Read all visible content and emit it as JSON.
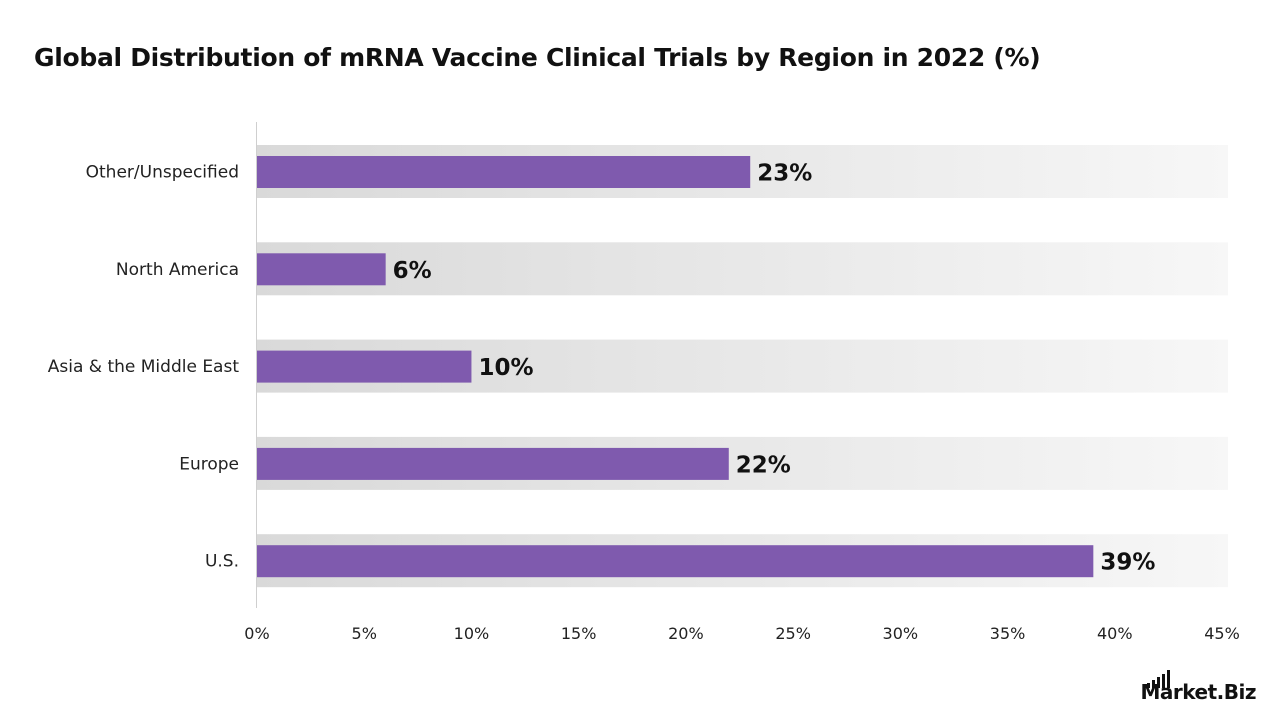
{
  "title": "Global Distribution of mRNA Vaccine Clinical Trials by Region in 2022 (%)",
  "logo": {
    "text": "Market.Biz"
  },
  "colors": {
    "bar": "#7f5aae",
    "band": "#e6e6e6",
    "axis": "#cfcfcf"
  },
  "chart_data": {
    "type": "bar",
    "orientation": "horizontal",
    "categories": [
      "Other/Unspecified",
      "North America",
      "Asia & the Middle East",
      "Europe",
      "U.S."
    ],
    "values": [
      23,
      6,
      10,
      22,
      39
    ],
    "value_labels": [
      "23%",
      "6%",
      "10%",
      "22%",
      "39%"
    ],
    "title": "Global Distribution of mRNA Vaccine Clinical Trials by Region in 2022 (%)",
    "xlabel": "",
    "ylabel": "",
    "xlim": [
      0,
      45
    ],
    "xticks": [
      0,
      5,
      10,
      15,
      20,
      25,
      30,
      35,
      40,
      45
    ],
    "xtick_labels": [
      "0%",
      "5%",
      "10%",
      "15%",
      "20%",
      "25%",
      "30%",
      "35%",
      "40%",
      "45%"
    ],
    "grid": false,
    "legend": "none"
  }
}
